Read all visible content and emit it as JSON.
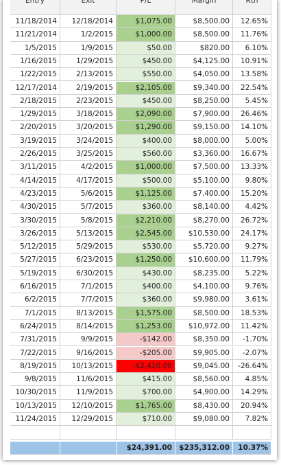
{
  "table": {
    "header": [
      "Entry",
      "Exit",
      "P/L",
      "Margin",
      "Rtn"
    ],
    "rows": [
      [
        "11/18/2014",
        "12/18/2014",
        "$1,075.00",
        "$8,500.00",
        "12.65%"
      ],
      [
        "11/21/2014",
        "1/2/2015",
        "$1,000.00",
        "$8,500.00",
        "11.76%"
      ],
      [
        "1/5/2015",
        "1/9/2015",
        "$50.00",
        "$820.00",
        "6.10%"
      ],
      [
        "1/16/2015",
        "1/29/2015",
        "$450.00",
        "$4,125.00",
        "10.91%"
      ],
      [
        "1/22/2015",
        "2/13/2015",
        "$550.00",
        "$4,050.00",
        "13.58%"
      ],
      [
        "12/17/2014",
        "2/19/2015",
        "$2,105.00",
        "$9,340.00",
        "22.54%"
      ],
      [
        "2/18/2015",
        "2/23/2015",
        "$450.00",
        "$8,250.00",
        "5.45%"
      ],
      [
        "1/29/2015",
        "3/18/2015",
        "$2,090.00",
        "$7,900.00",
        "26.46%"
      ],
      [
        "2/20/2015",
        "3/20/2015",
        "$1,290.00",
        "$9,150.00",
        "14.10%"
      ],
      [
        "3/19/2015",
        "3/24/2015",
        "$400.00",
        "$8,000.00",
        "5.00%"
      ],
      [
        "2/26/2015",
        "3/25/2015",
        "$560.00",
        "$3,360.00",
        "16.67%"
      ],
      [
        "3/11/2015",
        "4/2/2015",
        "$1,000.00",
        "$7,500.00",
        "13.33%"
      ],
      [
        "4/14/2015",
        "4/17/2015",
        "$500.00",
        "$5,100.00",
        "9.80%"
      ],
      [
        "4/23/2015",
        "5/6/2015",
        "$1,125.00",
        "$7,400.00",
        "15.20%"
      ],
      [
        "4/30/2015",
        "5/7/2015",
        "$360.00",
        "$8,140.00",
        "4.42%"
      ],
      [
        "3/30/2015",
        "5/8/2015",
        "$2,210.00",
        "$8,270.00",
        "26.72%"
      ],
      [
        "3/26/2015",
        "5/13/2015",
        "$2,545.00",
        "$10,530.00",
        "24.17%"
      ],
      [
        "5/12/2015",
        "5/29/2015",
        "$530.00",
        "$5,720.00",
        "9.27%"
      ],
      [
        "5/27/2015",
        "6/23/2015",
        "$1,250.00",
        "$10,600.00",
        "11.79%"
      ],
      [
        "5/19/2015",
        "6/30/2015",
        "$430.00",
        "$8,235.00",
        "5.22%"
      ],
      [
        "6/16/2015",
        "7/1/2015",
        "$400.00",
        "$4,100.00",
        "9.76%"
      ],
      [
        "6/2/2015",
        "7/7/2015",
        "$360.00",
        "$9,980.00",
        "3.61%"
      ],
      [
        "7/1/2015",
        "8/13/2015",
        "$1,575.00",
        "$8,500.00",
        "18.53%"
      ],
      [
        "6/24/2015",
        "8/14/2015",
        "$1,253.00",
        "$10,972.00",
        "11.42%"
      ],
      [
        "7/31/2015",
        "9/9/2015",
        "-$142.00",
        "$8,350.00",
        "-1.70%"
      ],
      [
        "7/22/2015",
        "9/16/2015",
        "-$205.00",
        "$9,905.00",
        "-2.07%"
      ],
      [
        "8/19/2015",
        "10/13/2015",
        "-$2,410.00",
        "$9,045.00",
        "-26.64%"
      ],
      [
        "9/8/2015",
        "11/6/2015",
        "$415.00",
        "$8,560.00",
        "4.85%"
      ],
      [
        "10/30/2015",
        "11/9/2015",
        "$700.00",
        "$4,900.00",
        "14.29%"
      ],
      [
        "10/13/2015",
        "12/10/2015",
        "$1,765.00",
        "$8,430.00",
        "20.94%"
      ],
      [
        "11/24/2015",
        "12/29/2015",
        "$710.00",
        "$9,080.00",
        "7.82%"
      ]
    ],
    "total": [
      "$24,391.00",
      "$235,312.00",
      "10.37%"
    ]
  }
}
